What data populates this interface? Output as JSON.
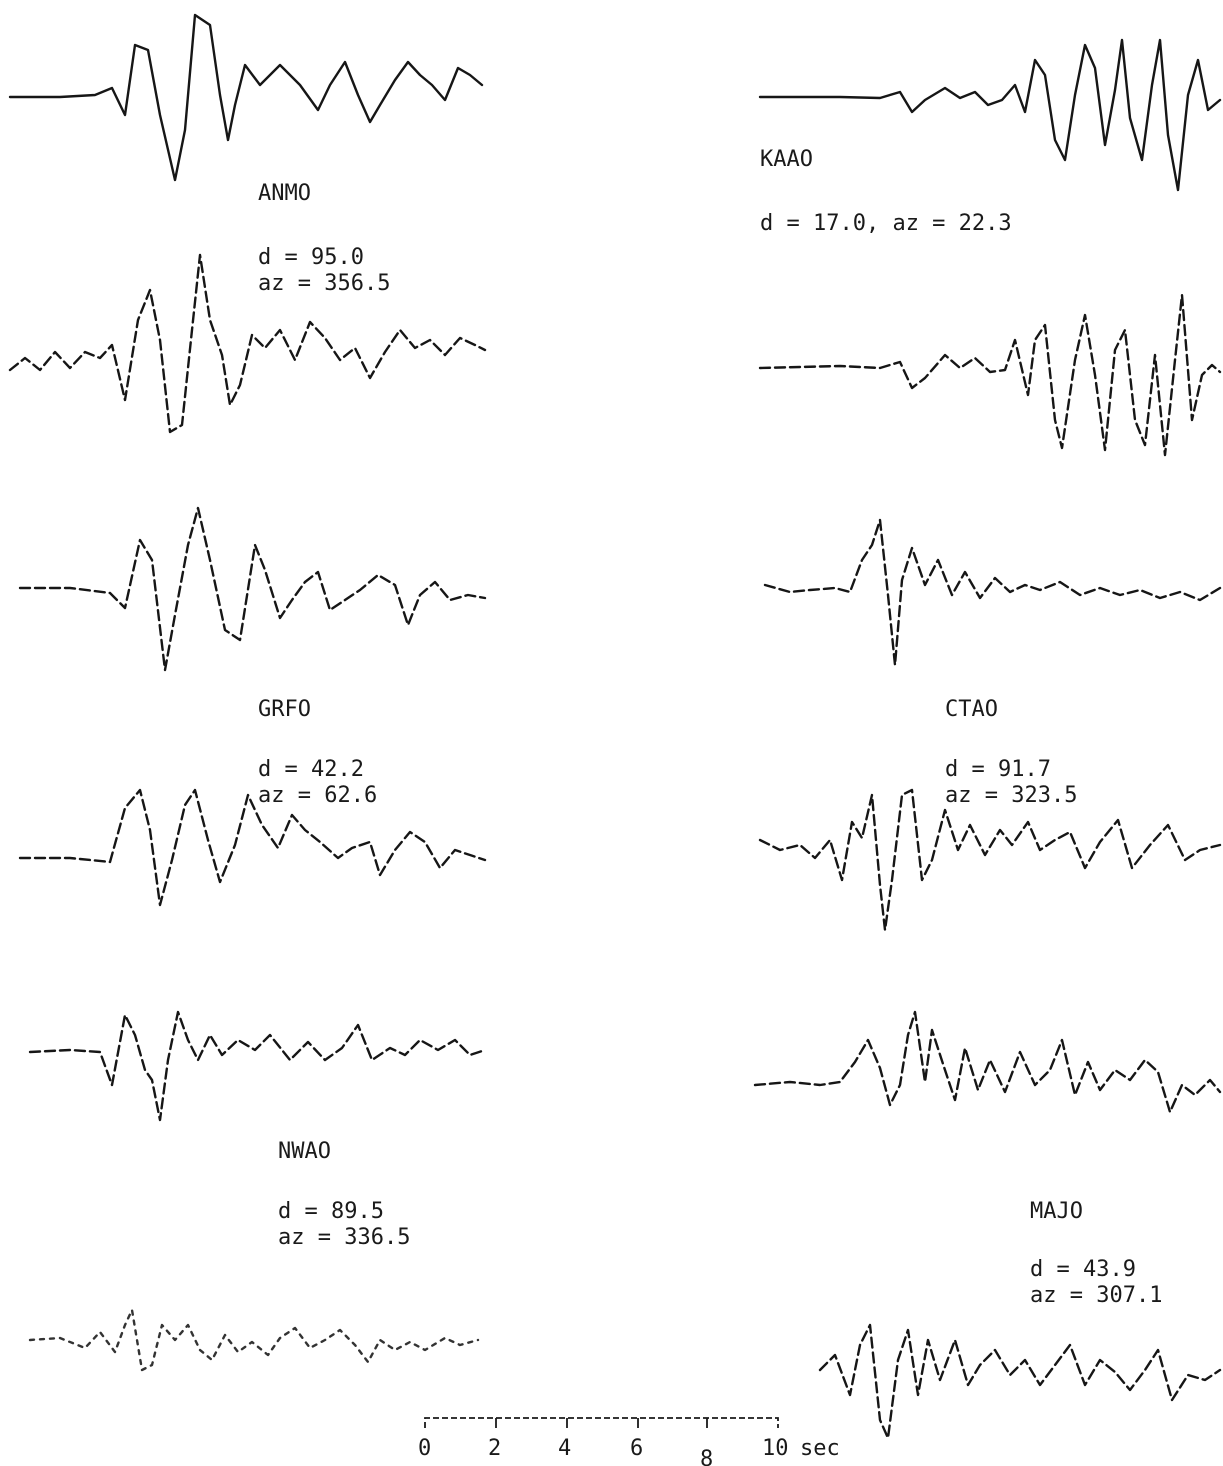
{
  "stations": [
    {
      "name": "ANMO",
      "d_line": "d = 95.0",
      "az_line": "az = 356.5"
    },
    {
      "name": "KAAO",
      "combined_line": "d = 17.0, az = 22.3"
    },
    {
      "name": "GRFO",
      "d_line": "d = 42.2",
      "az_line": "az = 62.6"
    },
    {
      "name": "CTAO",
      "d_line": "d = 91.7",
      "az_line": "az = 323.5"
    },
    {
      "name": "NWAO",
      "d_line": "d = 89.5",
      "az_line": "az = 336.5"
    },
    {
      "name": "MAJO",
      "d_line": "d = 43.9",
      "az_line": "az = 307.1"
    }
  ],
  "time_scale": {
    "ticks": [
      "0",
      "2",
      "4",
      "6",
      "8",
      "10"
    ],
    "unit": "sec"
  }
}
